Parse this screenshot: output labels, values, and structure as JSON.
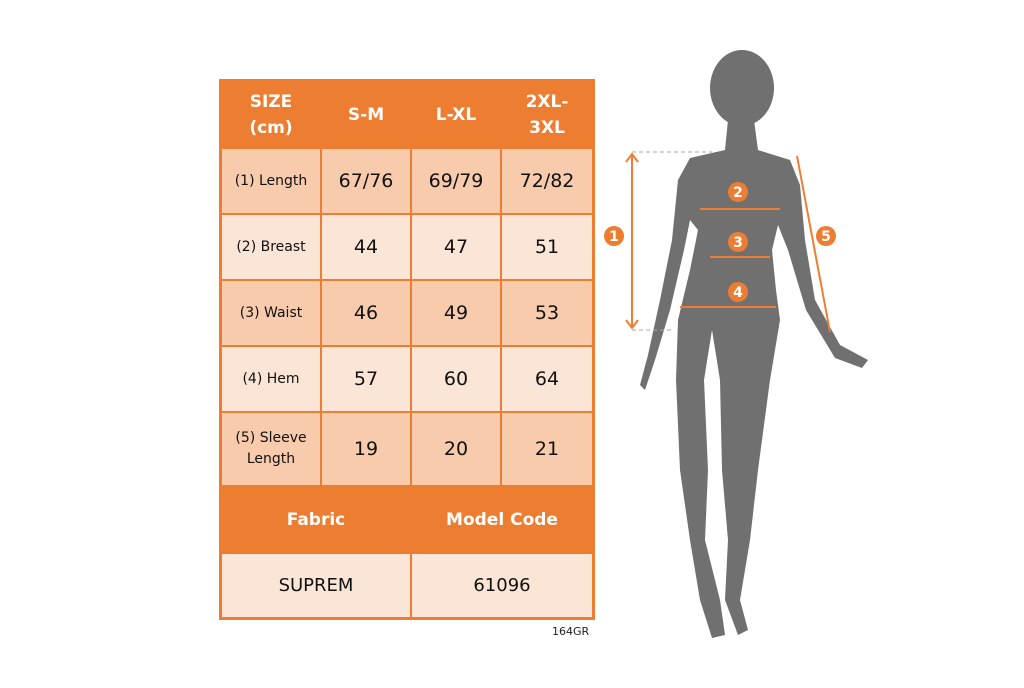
{
  "header": {
    "size": "SIZE (cm)",
    "cols": [
      "S-M",
      "L-XL",
      "2XL-3XL"
    ]
  },
  "rows": [
    {
      "label": "(1) Length",
      "values": [
        "67/76",
        "69/79",
        "72/82"
      ]
    },
    {
      "label": "(2) Breast",
      "values": [
        "44",
        "47",
        "51"
      ]
    },
    {
      "label": "(3) Waist",
      "values": [
        "46",
        "49",
        "53"
      ]
    },
    {
      "label": "(4) Hem",
      "values": [
        "57",
        "60",
        "64"
      ]
    },
    {
      "label": "(5) Sleeve Length",
      "values": [
        "19",
        "20",
        "21"
      ]
    }
  ],
  "info": {
    "fabric_label": "Fabric",
    "model_label": "Model Code",
    "fabric": "SUPREM",
    "model": "61096"
  },
  "product_code": "164GR",
  "markers": [
    "1",
    "2",
    "3",
    "4",
    "5"
  ],
  "colors": {
    "accent": "#ED7D31",
    "cell_dark": "#F8CBAD",
    "cell_light": "#FBE5D6",
    "silhouette": "#707070"
  }
}
